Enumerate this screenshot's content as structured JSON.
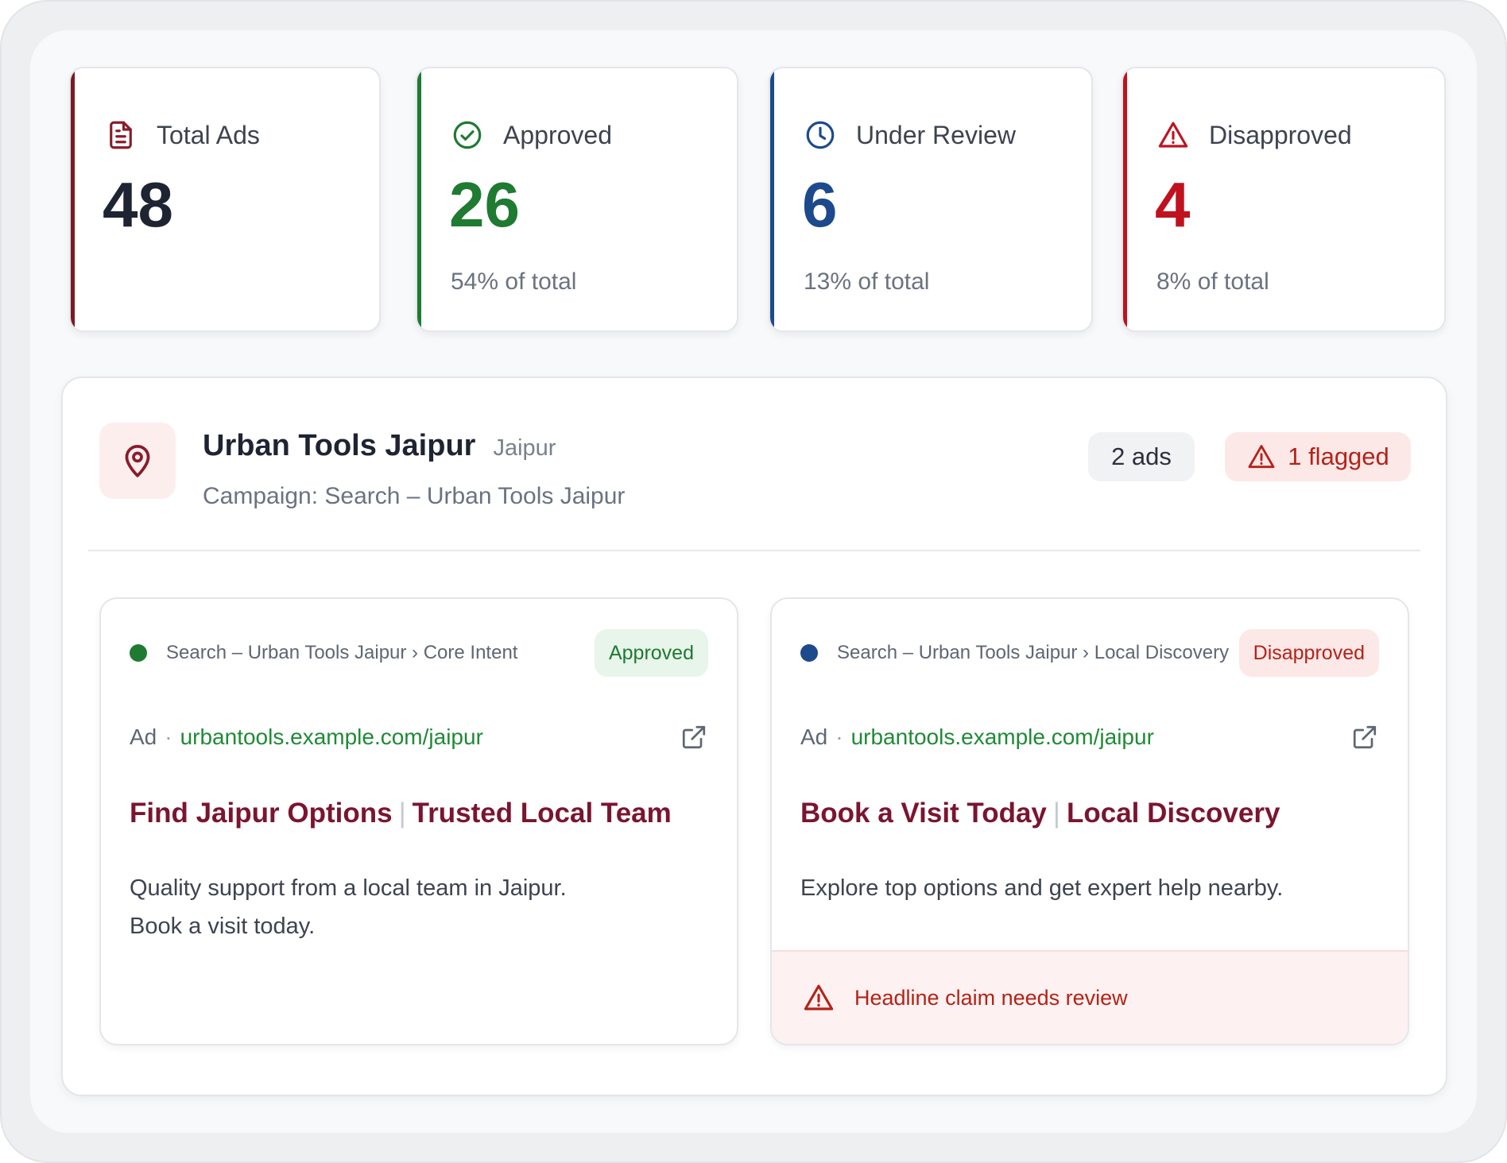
{
  "colors": {
    "total_accent": "#7a1a24",
    "approved_accent": "#1f7a32",
    "review_accent": "#1c4a8c",
    "disapproved_accent": "#c0121e",
    "headline": "#7a1530",
    "url": "#1f8a36"
  },
  "stats": [
    {
      "icon": "document-icon",
      "label": "Total Ads",
      "value": "48",
      "sub": ""
    },
    {
      "icon": "check-circle-icon",
      "label": "Approved",
      "value": "26",
      "sub": "54% of total"
    },
    {
      "icon": "clock-icon",
      "label": "Under Review",
      "value": "6",
      "sub": "13% of total"
    },
    {
      "icon": "warning-triangle-icon",
      "label": "Disapproved",
      "value": "4",
      "sub": "8% of total"
    }
  ],
  "location": {
    "icon": "map-pin-icon",
    "name": "Urban Tools Jaipur",
    "city": "Jaipur",
    "campaign": "Campaign: Search – Urban Tools Jaipur",
    "ads_count": "2 ads",
    "flagged": "1 flagged"
  },
  "ads": [
    {
      "path": "Search – Urban Tools Jaipur › Core Intent",
      "status": "Approved",
      "tag": "Ad",
      "sep": "·",
      "url": "urbantools.example.com/jaipur",
      "headline_1": "Find Jaipur Options",
      "headline_sep": "|",
      "headline_2": "Trusted Local Team",
      "description_lines": [
        "Quality support from a local team in Jaipur.",
        "Book a visit today."
      ]
    },
    {
      "path": "Search – Urban Tools Jaipur › Local Discovery",
      "status": "Disapproved",
      "tag": "Ad",
      "sep": "·",
      "url": "urbantools.example.com/jaipur",
      "headline_1": "Book a Visit Today",
      "headline_sep": "|",
      "headline_2": "Local Discovery",
      "description_lines": [
        "Explore top options and get expert help nearby."
      ],
      "warning": "Headline claim needs review"
    }
  ]
}
